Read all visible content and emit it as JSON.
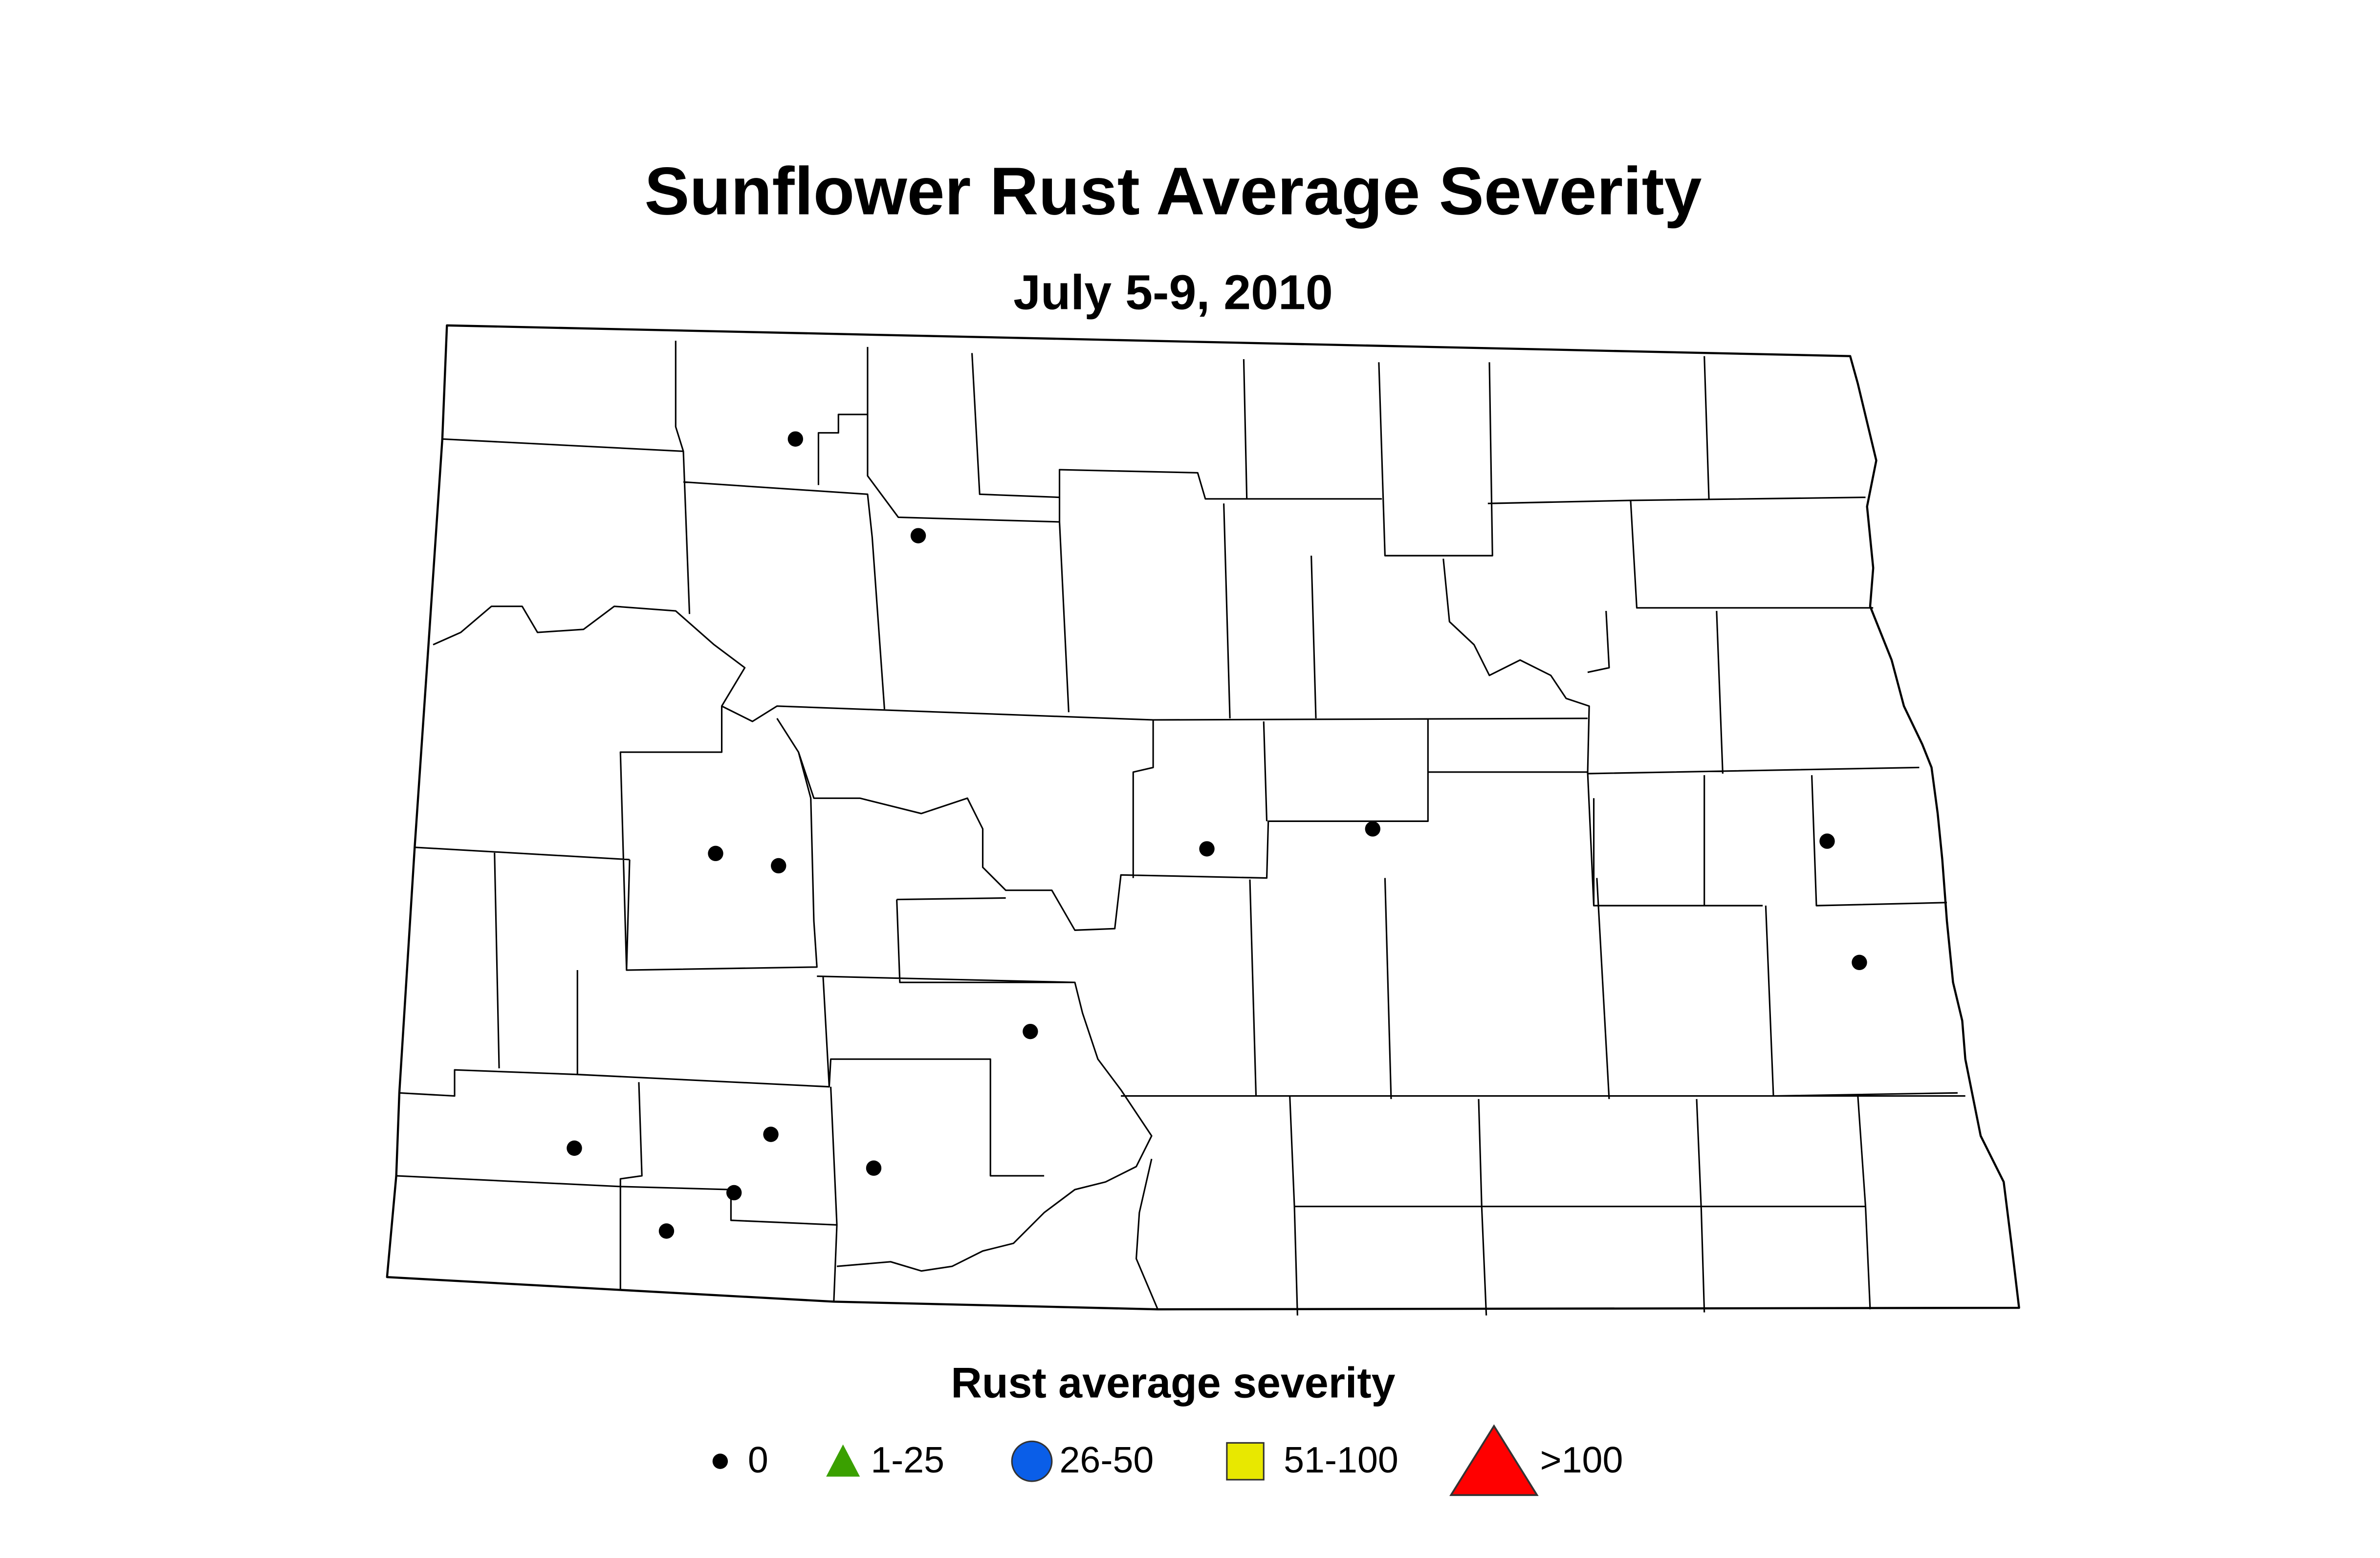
{
  "title": "Sunflower Rust Average Severity",
  "subtitle": "July 5-9, 2010",
  "legend": {
    "title": "Rust average severity",
    "items": [
      {
        "label": "0",
        "shape": "dot",
        "color": "#000000"
      },
      {
        "label": "1-25",
        "shape": "triangle",
        "color": "#3aa000"
      },
      {
        "label": "26-50",
        "shape": "circle",
        "color": "#0a5ee8"
      },
      {
        "label": "51-100",
        "shape": "square",
        "color": "#e8e800"
      },
      {
        "label": ">100",
        "shape": "big-triangle",
        "color": "#ff0000"
      }
    ]
  },
  "sites": {
    "values": [
      0,
      0,
      0,
      0,
      0,
      0,
      0,
      0,
      0,
      0,
      0,
      0,
      0,
      0
    ]
  }
}
